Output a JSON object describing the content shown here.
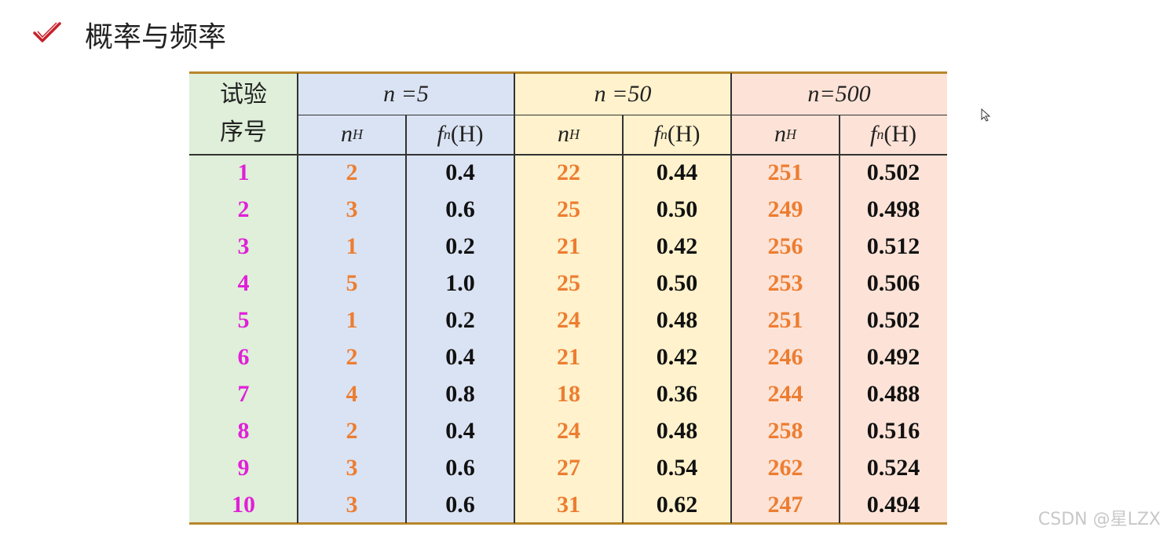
{
  "header": {
    "title": "概率与频率"
  },
  "table": {
    "corner": "试验序号",
    "groups": [
      "n =5",
      "n =50",
      "n=500"
    ],
    "columns": [
      {
        "main": "n",
        "sub": "H"
      },
      {
        "main": "f",
        "sub": "n",
        "suffix": "(H)"
      }
    ],
    "rows": [
      [
        "1",
        "2",
        "0.4",
        "22",
        "0.44",
        "251",
        "0.502"
      ],
      [
        "2",
        "3",
        "0.6",
        "25",
        "0.50",
        "249",
        "0.498"
      ],
      [
        "3",
        "1",
        "0.2",
        "21",
        "0.42",
        "256",
        "0.512"
      ],
      [
        "4",
        "5",
        "1.0",
        "25",
        "0.50",
        "253",
        "0.506"
      ],
      [
        "5",
        "1",
        "0.2",
        "24",
        "0.48",
        "251",
        "0.502"
      ],
      [
        "6",
        "2",
        "0.4",
        "21",
        "0.42",
        "246",
        "0.492"
      ],
      [
        "7",
        "4",
        "0.8",
        "18",
        "0.36",
        "244",
        "0.488"
      ],
      [
        "8",
        "2",
        "0.4",
        "24",
        "0.48",
        "258",
        "0.516"
      ],
      [
        "9",
        "3",
        "0.6",
        "27",
        "0.54",
        "262",
        "0.524"
      ],
      [
        "10",
        "3",
        "0.6",
        "31",
        "0.62",
        "247",
        "0.494"
      ]
    ]
  },
  "watermark": "CSDN @星LZX"
}
